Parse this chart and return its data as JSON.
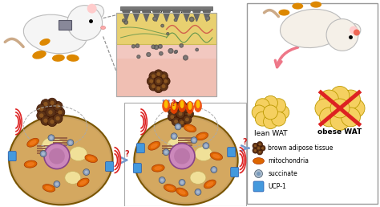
{
  "bg_color": "#ffffff",
  "legend_items": [
    {
      "label": "brown adipose tissue",
      "color": "#5c3317"
    },
    {
      "label": "mitochondria",
      "color": "#cc5500"
    },
    {
      "label": "succinate",
      "color": "#888888"
    },
    {
      "label": "UCP-1",
      "color": "#4499dd"
    }
  ],
  "text_microneedle": "microneedle",
  "text_lean_wat": "lean WAT",
  "text_obese_wat": "obese WAT",
  "skin_pink": "#f2c8c0",
  "skin_deeper_pink": "#f0b8a8",
  "skin_yellow": "#e8d070",
  "cell_body_color": "#c8a060",
  "cell_border_color": "#8b6914",
  "wat_color": "#f5d060",
  "bat_dark": "#5c3317",
  "bat_mid": "#8b5520",
  "mito_color": "#dd6600",
  "succ_color": "#7799bb",
  "ucp1_color": "#4499dd",
  "arrow_blue": "#7799cc",
  "cross_color": "#dd2222",
  "question_color": "#cc2222",
  "figsize": [
    4.74,
    2.58
  ],
  "dpi": 100
}
